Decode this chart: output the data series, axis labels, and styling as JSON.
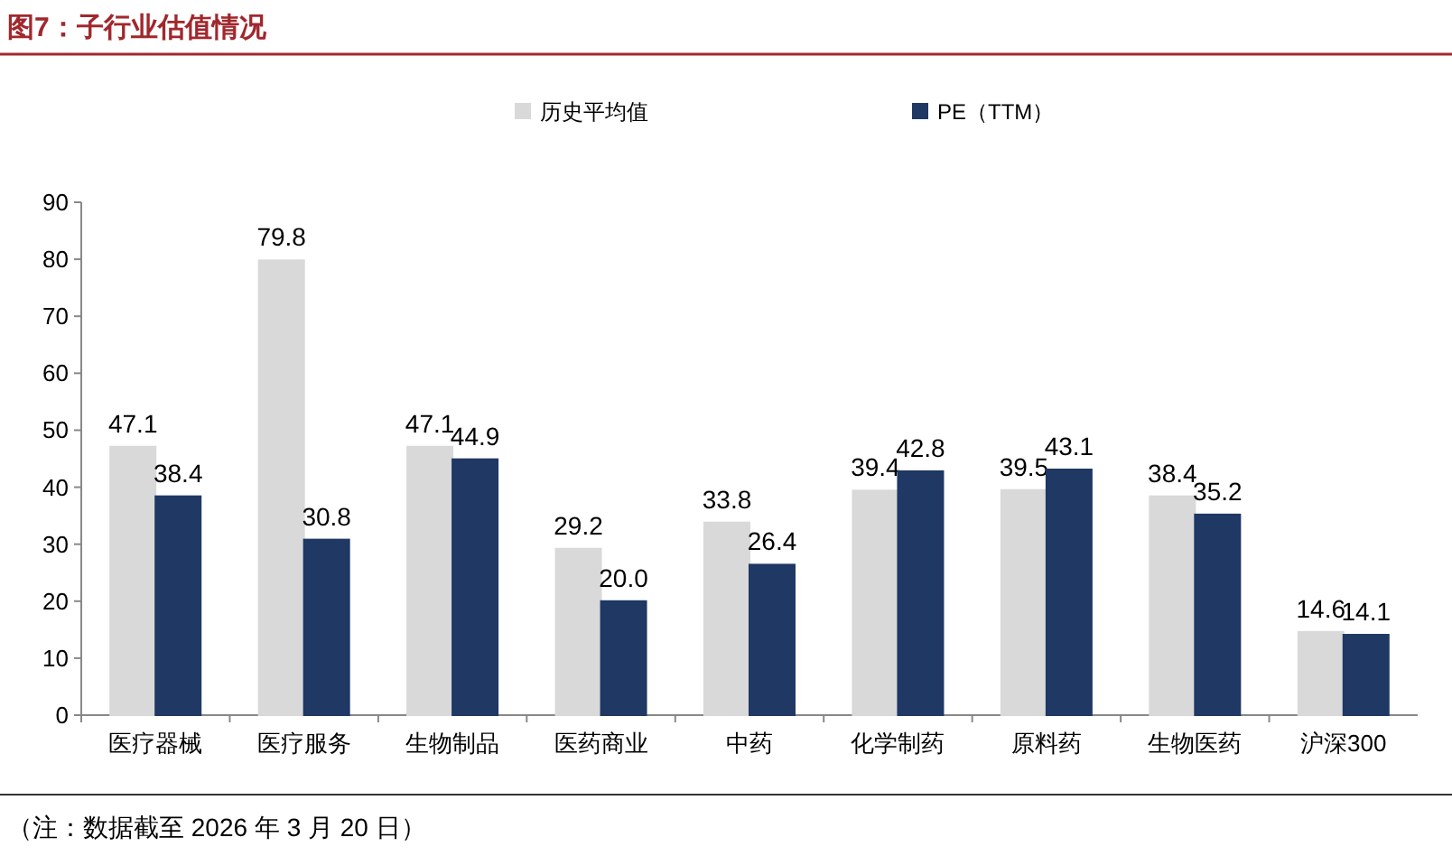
{
  "chart_data": {
    "type": "bar",
    "title": "图7：子行业估值情况",
    "categories": [
      "医疗器械",
      "医疗服务",
      "生物制品",
      "医药商业",
      "中药",
      "化学制药",
      "原料药",
      "生物医药",
      "沪深300"
    ],
    "series": [
      {
        "name": "历史平均值",
        "color": "#d9d9d9",
        "values": [
          47.1,
          79.8,
          47.1,
          29.2,
          33.8,
          39.4,
          39.5,
          38.4,
          14.6
        ],
        "value_labels": [
          "47.1",
          "79.8",
          "47.1",
          "29.2",
          "33.8",
          "39.4",
          "39.5",
          "38.4",
          "14.6"
        ]
      },
      {
        "name": "PE（TTM）",
        "color": "#1f3864",
        "values": [
          38.4,
          30.8,
          44.9,
          20.0,
          26.4,
          42.8,
          43.1,
          35.2,
          14.1
        ],
        "value_labels": [
          "38.4",
          "30.8",
          "44.9",
          "20.0",
          "26.4",
          "42.8",
          "43.1",
          "35.2",
          "14.1"
        ]
      }
    ],
    "ylim": [
      0,
      90
    ],
    "yticks": [
      0,
      10,
      20,
      30,
      40,
      50,
      60,
      70,
      80,
      90
    ],
    "grid": false,
    "legend": "top",
    "annotations": [
      "（注：数据截至 2026 年 3 月 20 日）"
    ]
  }
}
